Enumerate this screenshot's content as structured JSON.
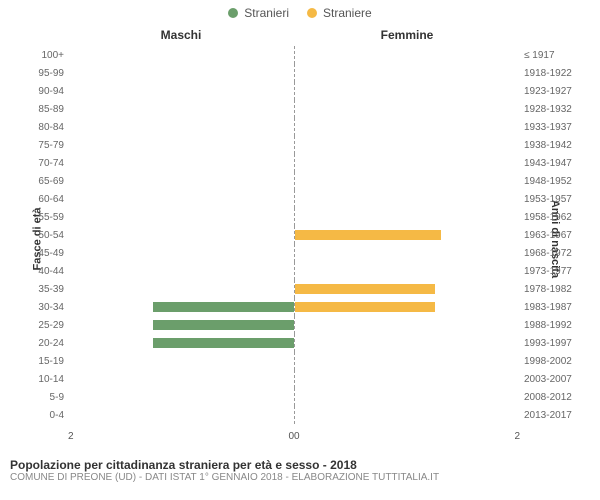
{
  "legend": {
    "male": {
      "label": "Stranieri",
      "color": "#6b9e6b"
    },
    "female": {
      "label": "Straniere",
      "color": "#f5b945"
    }
  },
  "column_titles": {
    "left": "Maschi",
    "right": "Femmine"
  },
  "axis_labels": {
    "left": "Fasce di età",
    "right": "Anni di nascita"
  },
  "x_axis": {
    "max": 2,
    "ticks_left": [
      "2",
      "0"
    ],
    "ticks_right": [
      "0",
      "2"
    ]
  },
  "rows": [
    {
      "age": "100+",
      "birth": "≤ 1917",
      "m": 0,
      "f": 0
    },
    {
      "age": "95-99",
      "birth": "1918-1922",
      "m": 0,
      "f": 0
    },
    {
      "age": "90-94",
      "birth": "1923-1927",
      "m": 0,
      "f": 0
    },
    {
      "age": "85-89",
      "birth": "1928-1932",
      "m": 0,
      "f": 0
    },
    {
      "age": "80-84",
      "birth": "1933-1937",
      "m": 0,
      "f": 0
    },
    {
      "age": "75-79",
      "birth": "1938-1942",
      "m": 0,
      "f": 0
    },
    {
      "age": "70-74",
      "birth": "1943-1947",
      "m": 0,
      "f": 0
    },
    {
      "age": "65-69",
      "birth": "1948-1952",
      "m": 0,
      "f": 0
    },
    {
      "age": "60-64",
      "birth": "1953-1957",
      "m": 0,
      "f": 0
    },
    {
      "age": "55-59",
      "birth": "1958-1962",
      "m": 0,
      "f": 0
    },
    {
      "age": "50-54",
      "birth": "1963-1967",
      "m": 0,
      "f": 1.3
    },
    {
      "age": "45-49",
      "birth": "1968-1972",
      "m": 0,
      "f": 0
    },
    {
      "age": "40-44",
      "birth": "1973-1977",
      "m": 0,
      "f": 0
    },
    {
      "age": "35-39",
      "birth": "1978-1982",
      "m": 0,
      "f": 1.25
    },
    {
      "age": "30-34",
      "birth": "1983-1987",
      "m": 1.25,
      "f": 1.25
    },
    {
      "age": "25-29",
      "birth": "1988-1992",
      "m": 1.25,
      "f": 0
    },
    {
      "age": "20-24",
      "birth": "1993-1997",
      "m": 1.25,
      "f": 0
    },
    {
      "age": "15-19",
      "birth": "1998-2002",
      "m": 0,
      "f": 0
    },
    {
      "age": "10-14",
      "birth": "2003-2007",
      "m": 0,
      "f": 0
    },
    {
      "age": "5-9",
      "birth": "2008-2012",
      "m": 0,
      "f": 0
    },
    {
      "age": "0-4",
      "birth": "2013-2017",
      "m": 0,
      "f": 0
    }
  ],
  "footer": {
    "title": "Popolazione per cittadinanza straniera per età e sesso - 2018",
    "subtitle": "COMUNE DI PREONE (UD) - Dati ISTAT 1° gennaio 2018 - Elaborazione TUTTITALIA.IT"
  },
  "style": {
    "chart_type": "population-pyramid",
    "background": "#ffffff",
    "center_line": "#999999",
    "tick_color": "#666666",
    "font_family": "Arial"
  }
}
